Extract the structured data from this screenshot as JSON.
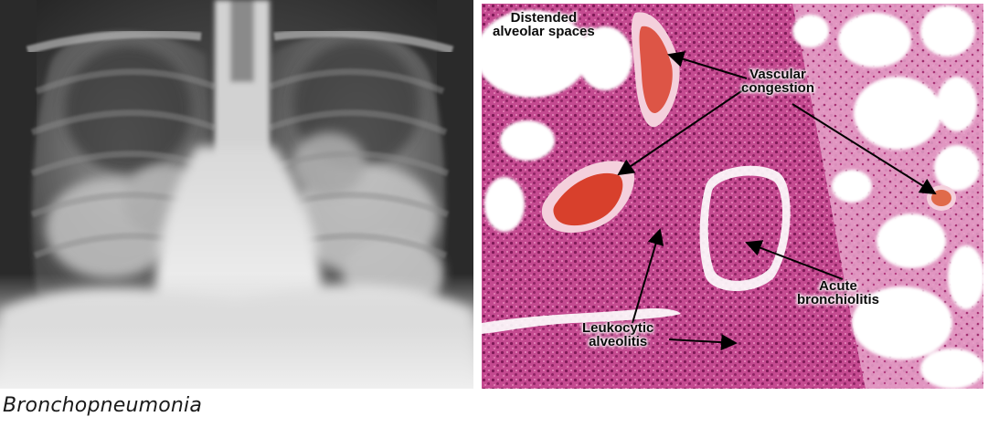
{
  "caption": "Bronchopneumonia",
  "xray": {
    "description_icon": "chest-radiograph-image"
  },
  "histology": {
    "labels": {
      "distended": [
        "Distended",
        "alveolar spaces"
      ],
      "vascular": [
        "Vascular",
        "congestion"
      ],
      "acute": [
        "Acute",
        "bronchiolitis"
      ],
      "leukocytic": [
        "Leukocytic",
        "alveolitis"
      ]
    }
  },
  "colors": {
    "tissue_dark": "#a8236b",
    "tissue_mid": "#cc4c94",
    "tissue_light": "#e9a3cc",
    "blood": "#d8402c",
    "alveolar_space": "#ffffff"
  }
}
